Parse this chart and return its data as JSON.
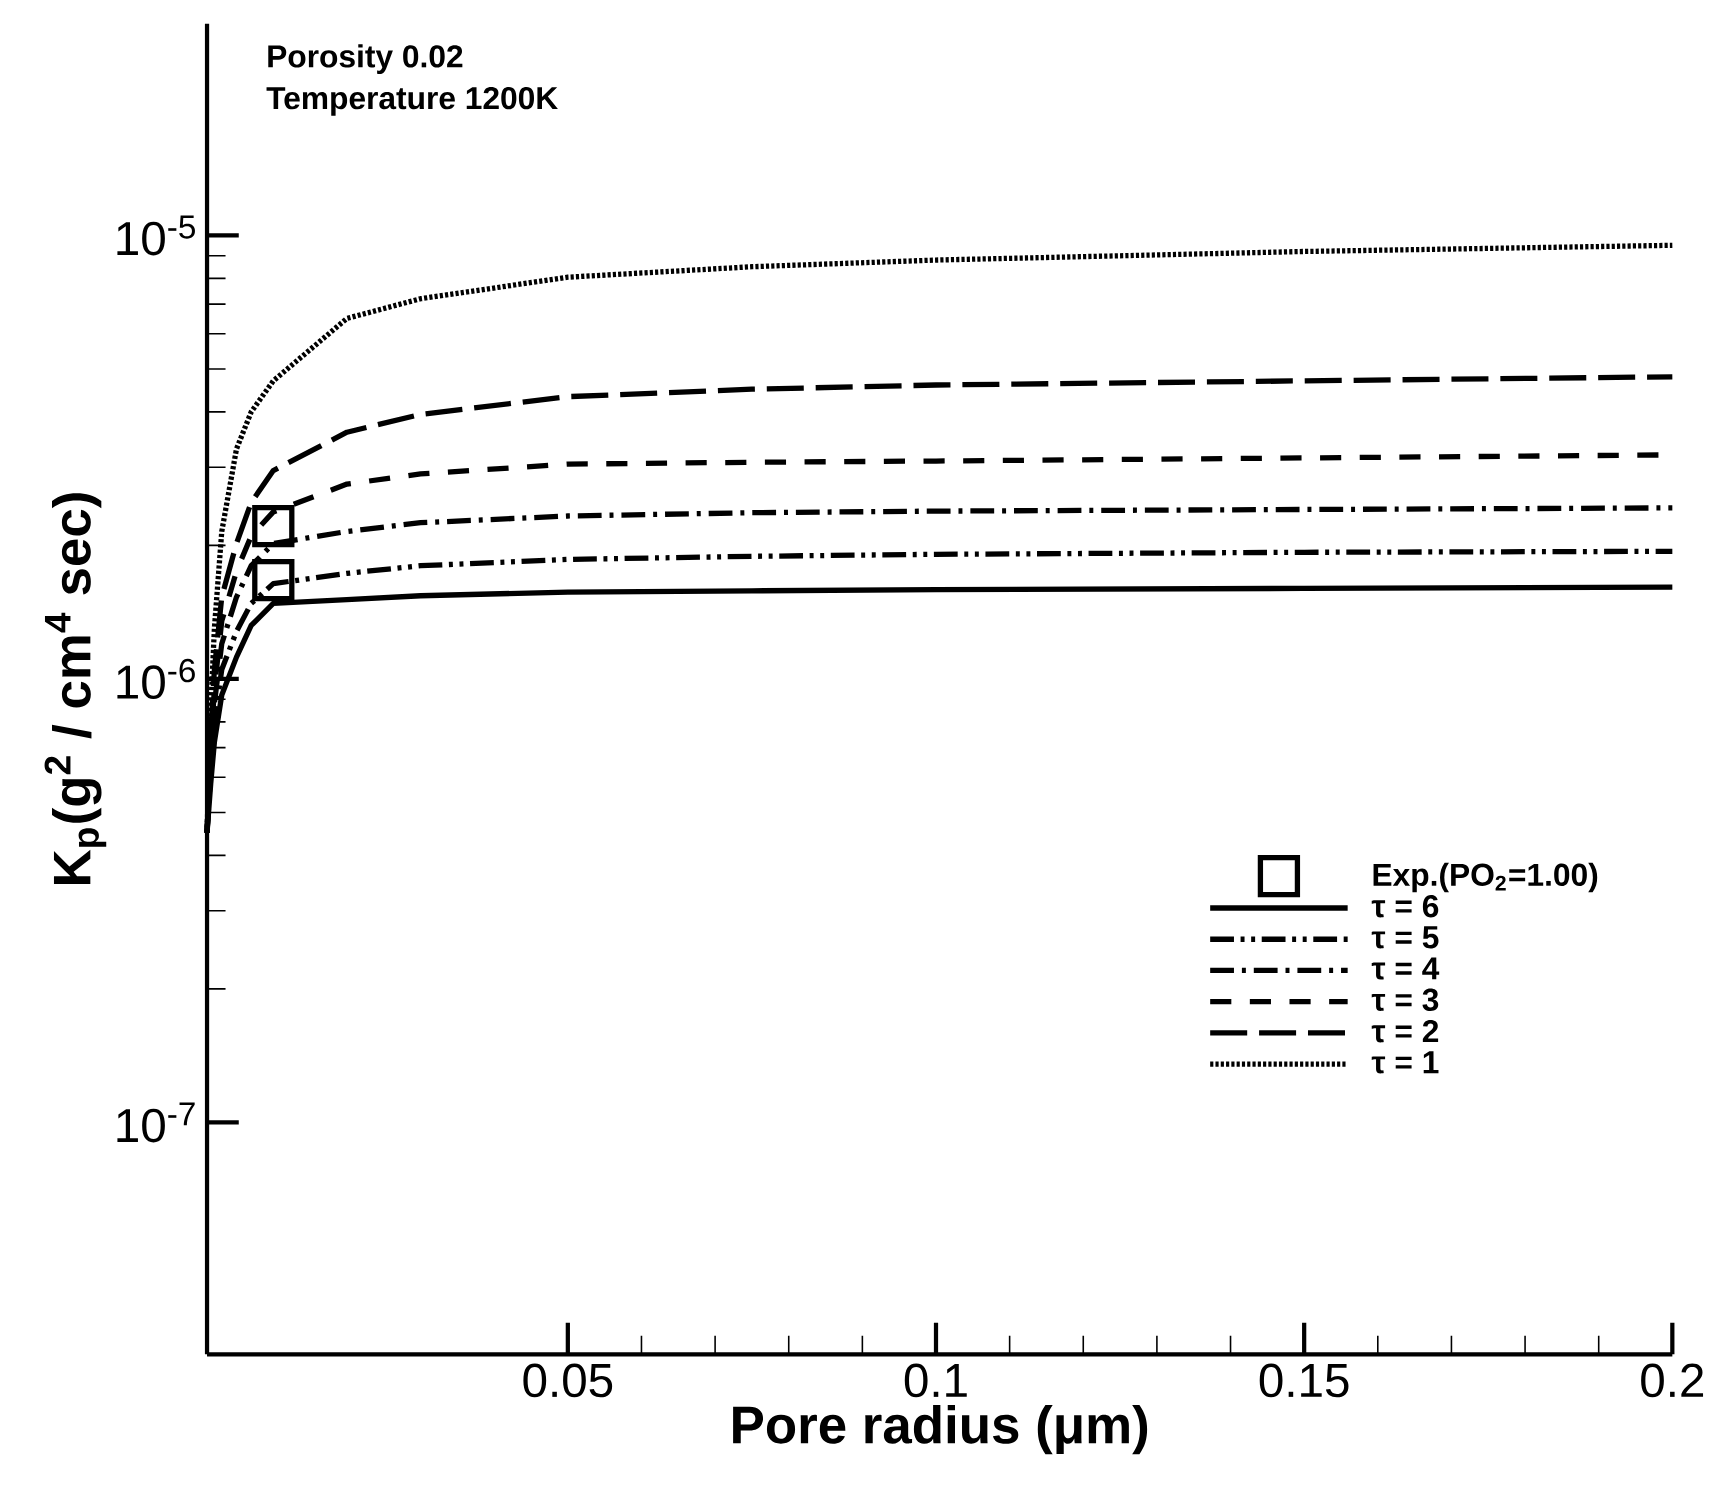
{
  "chart_data": {
    "type": "line",
    "xlabel": "Pore radius (μm)",
    "ylabel": "K$_{p}$(g$^{2}$ / cm$^{4}$ sec)",
    "annotations": [
      "Porosity 0.02",
      "Temperature 1200K"
    ],
    "log": "y",
    "xlim": [
      0.001,
      0.2
    ],
    "ylim": [
      3e-08,
      3e-05
    ],
    "xticks": [
      0.05,
      0.1,
      0.15,
      0.2
    ],
    "yticks": [
      {
        "value": 1e-07,
        "label": "10$^{-7}$"
      },
      {
        "value": 1e-06,
        "label": "10$^{-6}$"
      },
      {
        "value": 1e-05,
        "label": "10$^{-5}$"
      }
    ],
    "grid": false,
    "legend": "bottom right",
    "series": [
      {
        "name": "Exp.(PO$_{2}$=1.00)",
        "type": "scatter",
        "marker": "square",
        "color": "#000000",
        "x": [
          0.01,
          0.01
        ],
        "values": [
          2.21e-06,
          1.67e-06
        ]
      },
      {
        "name": "τ = 6",
        "color": "#000000",
        "line_style": "solid",
        "x": [
          0.001,
          0.0015,
          0.002,
          0.003,
          0.005,
          0.007,
          0.01,
          0.02,
          0.03,
          0.05,
          0.075,
          0.1,
          0.15,
          0.2
        ],
        "values": [
          4.5e-07,
          5.8e-07,
          7.2e-07,
          9.2e-07,
          1.12e-06,
          1.32e-06,
          1.48e-06,
          1.51e-06,
          1.54e-06,
          1.57e-06,
          1.58e-06,
          1.59e-06,
          1.6e-06,
          1.61e-06
        ]
      },
      {
        "name": "τ = 5",
        "color": "#000000",
        "line_style": "dashdotdot",
        "x": [
          0.001,
          0.0015,
          0.002,
          0.003,
          0.005,
          0.007,
          0.01,
          0.02,
          0.03,
          0.05,
          0.075,
          0.1,
          0.15,
          0.2
        ],
        "values": [
          4.5e-07,
          6.2e-07,
          8e-07,
          1.05e-06,
          1.28e-06,
          1.48e-06,
          1.64e-06,
          1.73e-06,
          1.8e-06,
          1.86e-06,
          1.89e-06,
          1.91e-06,
          1.93e-06,
          1.94e-06
        ]
      },
      {
        "name": "τ = 4",
        "color": "#000000",
        "line_style": "dashdot",
        "x": [
          0.001,
          0.0015,
          0.002,
          0.003,
          0.005,
          0.007,
          0.01,
          0.02,
          0.03,
          0.05,
          0.075,
          0.1,
          0.15,
          0.2
        ],
        "values": [
          4.5e-07,
          6.6e-07,
          8.8e-07,
          1.2e-06,
          1.53e-06,
          1.8e-06,
          2.02e-06,
          2.15e-06,
          2.25e-06,
          2.33e-06,
          2.37e-06,
          2.39e-06,
          2.41e-06,
          2.43e-06
        ]
      },
      {
        "name": "τ = 3",
        "color": "#000000",
        "line_style": "dashed",
        "x": [
          0.001,
          0.0015,
          0.002,
          0.003,
          0.005,
          0.007,
          0.01,
          0.02,
          0.03,
          0.05,
          0.075,
          0.1,
          0.15,
          0.2
        ],
        "values": [
          4.5e-07,
          7e-07,
          9.5e-07,
          1.35e-06,
          1.75e-06,
          2.1e-06,
          2.38e-06,
          2.75e-06,
          2.9e-06,
          3.05e-06,
          3.08e-06,
          3.1e-06,
          3.15e-06,
          3.2e-06
        ]
      },
      {
        "name": "τ = 2",
        "color": "#000000",
        "line_style": "longdash",
        "x": [
          0.001,
          0.0015,
          0.002,
          0.003,
          0.005,
          0.007,
          0.01,
          0.02,
          0.03,
          0.05,
          0.075,
          0.1,
          0.15,
          0.2
        ],
        "values": [
          4.5e-07,
          7.5e-07,
          1.05e-06,
          1.53e-06,
          2.02e-06,
          2.5e-06,
          2.95e-06,
          3.6e-06,
          3.95e-06,
          4.33e-06,
          4.5e-06,
          4.6e-06,
          4.7e-06,
          4.8e-06
        ]
      },
      {
        "name": "τ = 1",
        "color": "#000000",
        "line_style": "dotted",
        "x": [
          0.001,
          0.0015,
          0.002,
          0.003,
          0.005,
          0.007,
          0.01,
          0.02,
          0.03,
          0.05,
          0.075,
          0.1,
          0.15,
          0.2
        ],
        "values": [
          4.5e-07,
          8.5e-07,
          1.3e-06,
          2.15e-06,
          3.3e-06,
          4e-06,
          4.7e-06,
          6.5e-06,
          7.2e-06,
          8.05e-06,
          8.5e-06,
          8.8e-06,
          9.2e-06,
          9.5e-06
        ]
      }
    ]
  }
}
